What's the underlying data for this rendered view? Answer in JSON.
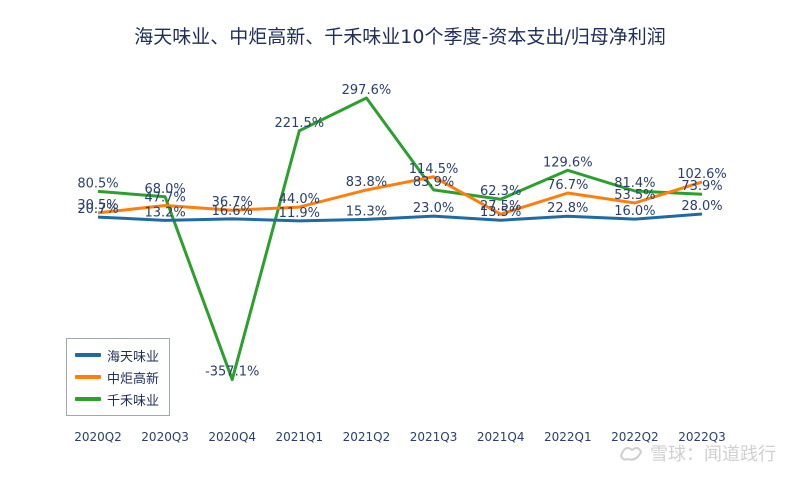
{
  "chart_data": {
    "type": "line",
    "title": "海天味业、中炬高新、千禾味业10个季度-资本支出/归母净利润",
    "categories": [
      "2020Q2",
      "2020Q3",
      "2020Q4",
      "2021Q1",
      "2021Q2",
      "2021Q3",
      "2021Q4",
      "2022Q1",
      "2022Q2",
      "2022Q3"
    ],
    "series": [
      {
        "name": "海天味业",
        "color": "#1f6aa5",
        "values": [
          20.7,
          13.2,
          16.6,
          11.9,
          15.3,
          23.0,
          13.5,
          22.8,
          16.0,
          28.0
        ],
        "labels": [
          "20.7%",
          "13.2%",
          "16.6%",
          "11.9%",
          "15.3%",
          "23.0%",
          "13.5%",
          "22.8%",
          "16.0%",
          "28.0%"
        ]
      },
      {
        "name": "中炬高新",
        "color": "#ff7f0e",
        "values": [
          30.5,
          47.7,
          36.7,
          44.0,
          83.8,
          114.5,
          27.5,
          76.7,
          53.5,
          102.6
        ],
        "labels": [
          "30.5%",
          "47.7%",
          "36.7%",
          "44.0%",
          "83.8%",
          "114.5%",
          "27.5%",
          "76.7%",
          "53.5%",
          "102.6%"
        ]
      },
      {
        "name": "千禾味业",
        "color": "#2ca02c",
        "values": [
          80.5,
          68.0,
          -357.1,
          221.5,
          297.6,
          83.9,
          62.3,
          129.6,
          81.4,
          73.9
        ],
        "labels": [
          "80.5%",
          "68.0%",
          "-357.1%",
          "221.5%",
          "297.6%",
          "83.9%",
          "62.3%",
          "129.6%",
          "81.4%",
          "73.9%"
        ]
      }
    ],
    "ylim": [
      -380,
      330
    ],
    "xlabel": "",
    "ylabel": "",
    "legend": "bottom-left"
  },
  "watermark": {
    "text": "雪球：闻道践行"
  }
}
